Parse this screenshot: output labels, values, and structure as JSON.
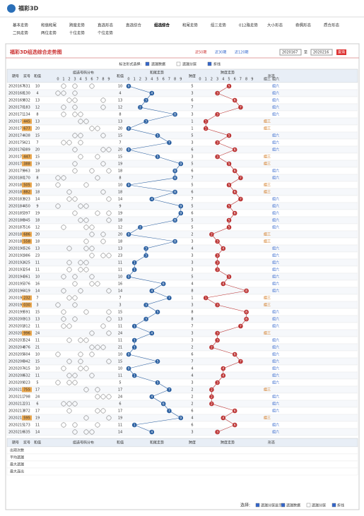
{
  "header": {
    "title": "福彩3D"
  },
  "nav": [
    "基本走势",
    "和值和尾",
    "跨度走势",
    "直选形态",
    "直选综合",
    "组选综合",
    "和尾走势",
    "组三走势",
    "012路走势",
    "大小形态",
    "奇偶形态",
    "质合形态",
    "二码走势",
    "两位走势",
    "十位走势",
    "个位走势"
  ],
  "active_nav": 5,
  "panel": {
    "title": "福彩3D组选综合走势图",
    "ranges": [
      "近50期",
      "近30期",
      "近120期"
    ],
    "from": "2020167",
    "to_label": "至",
    "to": "2020216",
    "button": "查询",
    "options_label": "标注形式选择:",
    "options": [
      "遗漏数据",
      "遗漏分层",
      "折线"
    ]
  },
  "table": {
    "headers": [
      "期号",
      "奖号",
      "和值",
      "组选号码分布",
      "和值",
      "和尾走势",
      "跨度",
      "跨度走势",
      "形态"
    ],
    "digits": [
      "0",
      "1",
      "2",
      "3",
      "4",
      "5",
      "6",
      "7",
      "8",
      "9"
    ],
    "rows": [
      [
        "2020167",
        "631",
        10,
        0,
        5
      ],
      [
        "2020168",
        "130",
        4,
        4,
        3
      ],
      [
        "2020169",
        "832",
        13,
        3,
        6
      ],
      [
        "2020170",
        "183",
        12,
        2,
        7
      ],
      [
        "2020171",
        "134",
        8,
        8,
        3
      ],
      [
        "2020172",
        "445",
        13,
        3,
        1
      ],
      [
        "2020173",
        "677",
        20,
        0,
        1
      ],
      [
        "2020174",
        "438",
        15,
        5,
        5
      ],
      [
        "2020175",
        "421",
        7,
        7,
        3
      ],
      [
        "2020176",
        "389",
        20,
        0,
        6
      ],
      [
        "2020177",
        "447",
        15,
        5,
        3
      ],
      [
        "2020178",
        "388",
        19,
        9,
        5
      ],
      [
        "2020179",
        "963",
        18,
        8,
        6
      ],
      [
        "2020180",
        "170",
        8,
        8,
        7
      ],
      [
        "2020181",
        "505",
        10,
        0,
        5
      ],
      [
        "2020182",
        "882",
        18,
        8,
        6
      ],
      [
        "2020183",
        "923",
        14,
        4,
        7
      ],
      [
        "2020184",
        "450",
        9,
        9,
        5
      ],
      [
        "2020185",
        "397",
        19,
        9,
        6
      ],
      [
        "2020186",
        "945",
        18,
        8,
        5
      ],
      [
        "2020187",
        "516",
        12,
        2,
        5
      ],
      [
        "2020188",
        "686",
        20,
        0,
        2
      ],
      [
        "2020189",
        "558",
        18,
        8,
        3
      ],
      [
        "2020190",
        "526",
        13,
        3,
        4
      ],
      [
        "2020191",
        "986",
        23,
        3,
        3
      ],
      [
        "2020192",
        "425",
        11,
        1,
        3
      ],
      [
        "2020193",
        "254",
        11,
        1,
        3
      ],
      [
        "2020194",
        "361",
        10,
        0,
        5
      ],
      [
        "2020195",
        "376",
        16,
        6,
        4
      ],
      [
        "2020196",
        "419",
        14,
        4,
        8
      ],
      [
        "2020197",
        "232",
        7,
        7,
        1
      ],
      [
        "2020198",
        "030",
        3,
        3,
        3
      ],
      [
        "2020199",
        "591",
        15,
        5,
        8
      ],
      [
        "2020200",
        "913",
        13,
        3,
        8
      ],
      [
        "2020201",
        "812",
        11,
        1,
        7
      ],
      [
        "2020202",
        "996",
        24,
        4,
        3
      ],
      [
        "2020203",
        "524",
        11,
        1,
        3
      ],
      [
        "2020204",
        "876",
        21,
        1,
        2
      ],
      [
        "2020205",
        "604",
        10,
        0,
        6
      ],
      [
        "2020206",
        "942",
        15,
        5,
        7
      ],
      [
        "2020207",
        "415",
        10,
        0,
        4
      ],
      [
        "2020208",
        "632",
        11,
        1,
        4
      ],
      [
        "2020209",
        "023",
        5,
        5,
        3
      ],
      [
        "2020210",
        "755",
        17,
        7,
        2
      ],
      [
        "2020211",
        "798",
        24,
        4,
        2
      ],
      [
        "2020212",
        "231",
        6,
        6,
        2
      ],
      [
        "2020213",
        "872",
        17,
        7,
        6
      ],
      [
        "2020214",
        "595",
        19,
        9,
        4
      ],
      [
        "2020215",
        "173",
        11,
        1,
        6
      ],
      [
        "2020216",
        "635",
        14,
        4,
        3
      ]
    ],
    "types": [
      "组三",
      "组六"
    ],
    "stat_rows": [
      "出现次数",
      "平均遗漏",
      "最大遗漏",
      "最大连出"
    ]
  },
  "footer": {
    "label": "选择:",
    "options": [
      "遗漏分层显示",
      "遗漏数据",
      "遗漏分层",
      "折线"
    ]
  }
}
